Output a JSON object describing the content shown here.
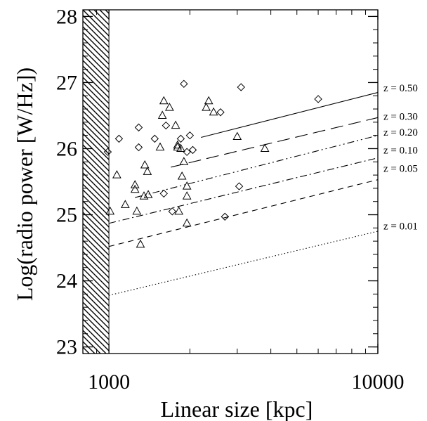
{
  "chart_data": {
    "type": "scatter",
    "title": "",
    "xlabel": "Linear size [kpc]",
    "ylabel": "Log(radio power [W/Hz])",
    "xscale": "log",
    "xlim": [
      800,
      10000
    ],
    "ylim": [
      22.9,
      28.1
    ],
    "x_ticks": [
      1000,
      10000
    ],
    "x_tick_labels": [
      "1000",
      "10000"
    ],
    "y_ticks": [
      23,
      24,
      25,
      26,
      27,
      28
    ],
    "y_tick_labels": [
      "23",
      "24",
      "25",
      "26",
      "27",
      "28"
    ],
    "excluded_region": {
      "x_from": 800,
      "x_to": 1000,
      "fill": "hatched"
    },
    "grid": false,
    "legend": "none",
    "series": [
      {
        "marker": "triangle",
        "points": [
          [
            1010,
            25.05
          ],
          [
            1070,
            25.6
          ],
          [
            1150,
            25.15
          ],
          [
            1250,
            25.45
          ],
          [
            1250,
            25.38
          ],
          [
            1270,
            25.05
          ],
          [
            1310,
            24.55
          ],
          [
            1350,
            25.28
          ],
          [
            1360,
            25.75
          ],
          [
            1390,
            25.65
          ],
          [
            1400,
            25.3
          ],
          [
            1550,
            26.02
          ],
          [
            1580,
            26.5
          ],
          [
            1600,
            26.72
          ],
          [
            1680,
            26.62
          ],
          [
            1770,
            26.35
          ],
          [
            1800,
            26.02
          ],
          [
            1800,
            26.05
          ],
          [
            1820,
            25.05
          ],
          [
            1850,
            26.0
          ],
          [
            1870,
            25.58
          ],
          [
            1900,
            25.8
          ],
          [
            1950,
            25.43
          ],
          [
            1950,
            25.28
          ],
          [
            1950,
            24.87
          ],
          [
            2300,
            26.62
          ],
          [
            2350,
            26.72
          ],
          [
            2450,
            26.55
          ],
          [
            3000,
            26.18
          ],
          [
            3800,
            26.0
          ]
        ]
      },
      {
        "marker": "diamond",
        "points": [
          [
            990,
            25.95
          ],
          [
            1090,
            26.15
          ],
          [
            1290,
            26.32
          ],
          [
            1290,
            26.02
          ],
          [
            1480,
            26.15
          ],
          [
            1600,
            25.32
          ],
          [
            1630,
            26.35
          ],
          [
            1720,
            25.05
          ],
          [
            1850,
            26.15
          ],
          [
            1900,
            26.98
          ],
          [
            1950,
            25.95
          ],
          [
            2000,
            26.2
          ],
          [
            2050,
            25.98
          ],
          [
            2600,
            26.55
          ],
          [
            2700,
            24.97
          ],
          [
            3050,
            25.43
          ],
          [
            3100,
            26.93
          ],
          [
            6000,
            26.75
          ]
        ]
      }
    ],
    "reference_lines": [
      {
        "label": "z = 0.50",
        "style": "solid",
        "x": [
          2200,
          10000
        ],
        "y": [
          26.17,
          26.85
        ]
      },
      {
        "label": "z = 0.30",
        "style": "longdash",
        "x": [
          1700,
          10000
        ],
        "y": [
          25.72,
          26.47
        ]
      },
      {
        "label": "z = 0.20",
        "style": "dash-dot-dot",
        "x": [
          1250,
          10000
        ],
        "y": [
          25.26,
          26.2
        ]
      },
      {
        "label": "z = 0.10",
        "style": "dash-dot",
        "x": [
          1000,
          10000
        ],
        "y": [
          24.87,
          25.86
        ]
      },
      {
        "label": "z = 0.05",
        "style": "dashed",
        "x": [
          1000,
          10000
        ],
        "y": [
          24.52,
          25.53
        ]
      },
      {
        "label": "z = 0.01",
        "style": "dotted",
        "x": [
          1000,
          10000
        ],
        "y": [
          23.78,
          24.75
        ]
      }
    ],
    "line_label_y": [
      26.92,
      26.49,
      26.25,
      25.98,
      25.7,
      24.83
    ]
  }
}
